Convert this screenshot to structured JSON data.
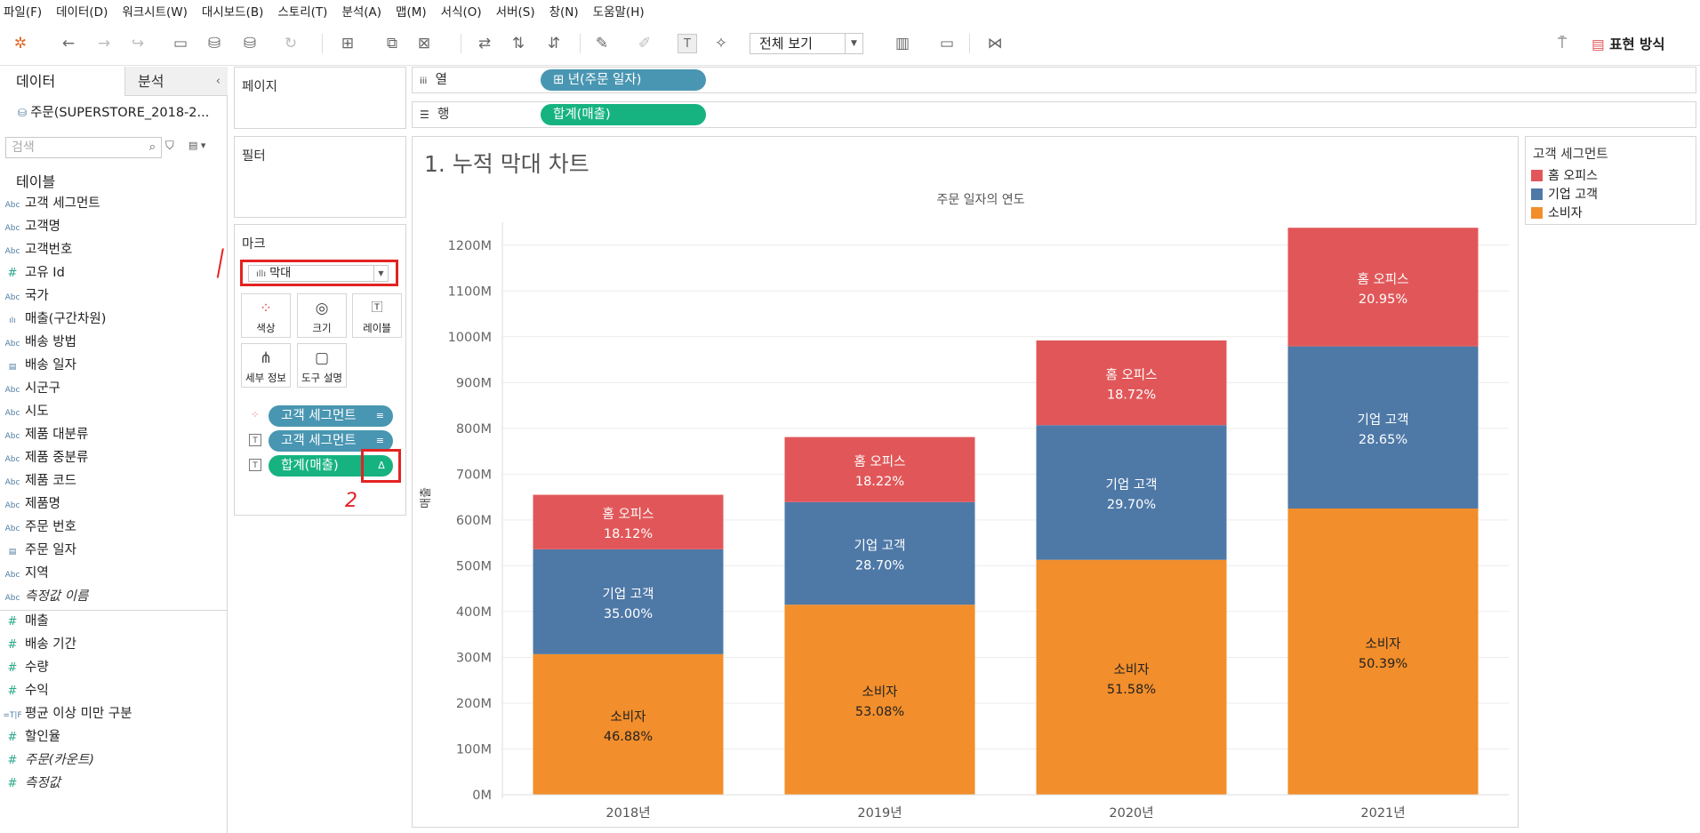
{
  "menu": [
    "파일(F)",
    "데이터(D)",
    "워크시트(W)",
    "대시보드(B)",
    "스토리(T)",
    "분석(A)",
    "맵(M)",
    "서식(O)",
    "서버(S)",
    "창(N)",
    "도움말(H)"
  ],
  "toolbar": {
    "view_mode": "전체 보기",
    "show_me": "표현 방식"
  },
  "data_pane": {
    "tab_data": "데이터",
    "tab_analysis": "분석",
    "datasource": "주문(SUPERSTORE_2018-2...",
    "search_placeholder": "검색",
    "tables_title": "테이블",
    "fields": [
      {
        "type": "Abc",
        "label": "고객 세그먼트"
      },
      {
        "type": "Abc",
        "label": "고객명"
      },
      {
        "type": "Abc",
        "label": "고객번호"
      },
      {
        "type": "#",
        "label": "고유 Id"
      },
      {
        "type": "Abc",
        "label": "국가"
      },
      {
        "type": "bin",
        "label": "매출(구간차원)"
      },
      {
        "type": "Abc",
        "label": "배송 방법"
      },
      {
        "type": "date",
        "label": "배송 일자"
      },
      {
        "type": "Abc",
        "label": "시군구"
      },
      {
        "type": "Abc",
        "label": "시도"
      },
      {
        "type": "Abc",
        "label": "제품 대분류"
      },
      {
        "type": "Abc",
        "label": "제품 중분류"
      },
      {
        "type": "Abc",
        "label": "제품 코드"
      },
      {
        "type": "Abc",
        "label": "제품명"
      },
      {
        "type": "Abc",
        "label": "주문 번호"
      },
      {
        "type": "date",
        "label": "주문 일자"
      },
      {
        "type": "Abc",
        "label": "지역"
      },
      {
        "type": "Abc",
        "label": "측정값 이름",
        "italic": true
      }
    ],
    "measures": [
      {
        "type": "#",
        "label": "매출"
      },
      {
        "type": "#",
        "label": "배송 기간"
      },
      {
        "type": "#",
        "label": "수량"
      },
      {
        "type": "#",
        "label": "수익"
      },
      {
        "type": "=T|F",
        "label": "평균 이상 미만 구분"
      },
      {
        "type": "#",
        "label": "할인율"
      },
      {
        "type": "#",
        "label": "주문(카운트)",
        "italic": true
      },
      {
        "type": "#",
        "label": "측정값",
        "italic": true
      }
    ]
  },
  "cards": {
    "pages": "페이지",
    "filters": "필터",
    "marks": "마크",
    "mark_type": "막대",
    "mark_buttons": [
      "색상",
      "크기",
      "레이블",
      "세부 정보",
      "도구 설명"
    ],
    "mark_pills": [
      {
        "icon": "color",
        "label": "고객 세그먼트",
        "color": "#4996b2"
      },
      {
        "icon": "label",
        "label": "고객 세그먼트",
        "color": "#4996b2"
      },
      {
        "icon": "label",
        "label": "합계(매출)",
        "color": "#16b381"
      }
    ],
    "delta_symbol": "Δ"
  },
  "shelves": {
    "columns_label": "열",
    "columns_pill": "⊞ 년(주문 일자)",
    "rows_label": "행",
    "rows_pill": "합계(매출)"
  },
  "annotations": {
    "one": "/",
    "two": "2"
  },
  "sheet_title": "1. 누적 막대 차트",
  "legend": {
    "title": "고객 세그먼트",
    "items": [
      {
        "label": "홈 오피스",
        "color": "#e15759"
      },
      {
        "label": "기업 고객",
        "color": "#4e79a7"
      },
      {
        "label": "소비자",
        "color": "#f28e2b"
      }
    ]
  },
  "chart_data": {
    "type": "bar",
    "stacked": true,
    "title": "1. 누적 막대 차트",
    "x_header": "주문 일자의 연도",
    "ylabel": "매출",
    "categories": [
      "2018년",
      "2019년",
      "2020년",
      "2021년"
    ],
    "ylim": [
      0,
      1250
    ],
    "y_ticks": [
      0,
      100,
      200,
      300,
      400,
      500,
      600,
      700,
      800,
      900,
      1000,
      1100,
      1200
    ],
    "y_tick_suffix": "M",
    "grid": true,
    "legend_position": "right",
    "series": [
      {
        "name": "소비자",
        "color": "#f28e2b",
        "values": [
          307,
          415,
          513,
          625
        ],
        "pct_labels": [
          "46.88%",
          "53.08%",
          "51.58%",
          "50.39%"
        ]
      },
      {
        "name": "기업 고객",
        "color": "#4e79a7",
        "values": [
          229,
          224,
          294,
          354
        ],
        "pct_labels": [
          "35.00%",
          "28.70%",
          "29.70%",
          "28.65%"
        ]
      },
      {
        "name": "홈 오피스",
        "color": "#e15759",
        "values": [
          119,
          142,
          185,
          259
        ],
        "pct_labels": [
          "18.12%",
          "18.22%",
          "18.72%",
          "20.95%"
        ]
      }
    ]
  }
}
